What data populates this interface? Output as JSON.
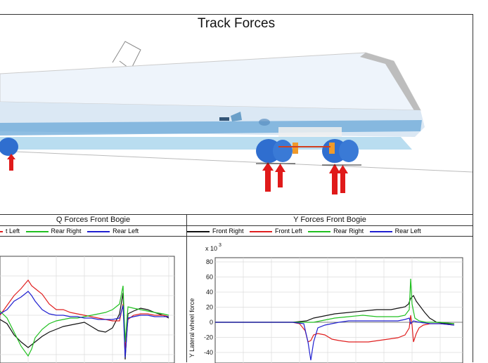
{
  "window": {
    "title": "Track Forces"
  },
  "left_panel": {
    "title": "Q Forces Front Bogie",
    "legend": [
      {
        "label": "t Left",
        "color": "#e02020"
      },
      {
        "label": "Rear Right",
        "color": "#20c020"
      },
      {
        "label": "Rear Left",
        "color": "#2020d0"
      }
    ]
  },
  "right_panel": {
    "title": "Y Forces Front Bogie",
    "legend": [
      {
        "label": "Front Right",
        "color": "#111111"
      },
      {
        "label": "Front Left",
        "color": "#e02020"
      },
      {
        "label": "Rear Right",
        "color": "#20c020"
      },
      {
        "label": "Rear Left",
        "color": "#2020d0"
      }
    ]
  },
  "chart_data": {
    "type": "line",
    "title": "Y Forces Front Bogie",
    "ylabel": "Y Lateral wheel force",
    "yscale_label": "x 10",
    "yscale_exp": "3",
    "ylim": [
      -40,
      80
    ],
    "yticks": [
      "80",
      "60",
      "40",
      "20",
      "0",
      "-20",
      "-40"
    ],
    "grid": true,
    "series": [
      {
        "name": "Front Right",
        "color": "#111111"
      },
      {
        "name": "Front Left",
        "color": "#e02020"
      },
      {
        "name": "Rear Right",
        "color": "#20c020"
      },
      {
        "name": "Rear Left",
        "color": "#2020d0"
      }
    ]
  }
}
